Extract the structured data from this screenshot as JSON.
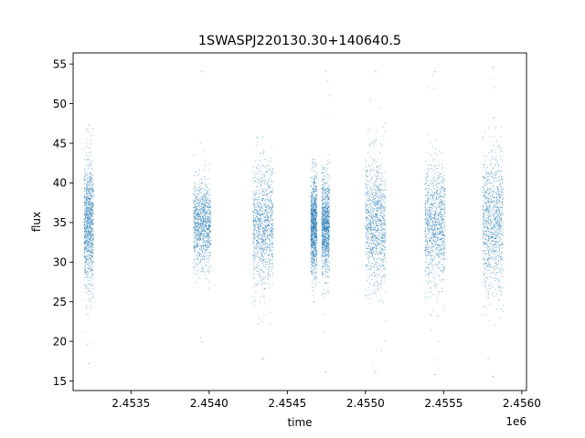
{
  "chart_data": {
    "type": "scatter",
    "title": "1SWASPJ220130.30+140640.5",
    "xlabel": "time",
    "ylabel": "flux",
    "x_offset_label": "1e6",
    "xlim": [
      2.45313,
      2.45603
    ],
    "ylim": [
      13.8,
      56.4
    ],
    "x_ticks": [
      2.4535,
      2.454,
      2.4545,
      2.455,
      2.4555,
      2.456
    ],
    "x_tick_labels": [
      "2.4535",
      "2.4540",
      "2.4545",
      "2.4550",
      "2.4555",
      "2.4560"
    ],
    "y_ticks": [
      15,
      20,
      25,
      30,
      35,
      40,
      45,
      50,
      55
    ],
    "y_tick_labels": [
      "15",
      "20",
      "25",
      "30",
      "35",
      "40",
      "45",
      "50",
      "55"
    ],
    "grid": false,
    "legend": "none",
    "marker_color": "#1f77b4",
    "observing_seasons": [
      {
        "x_start": 2.4532,
        "x_end": 2.45326,
        "y_mean": 35.0,
        "y_spread": 3.8,
        "y_min": 17.2,
        "y_max": 47.3
      },
      {
        "x_start": 2.4539,
        "x_end": 2.45401,
        "y_mean": 34.8,
        "y_spread": 2.6,
        "y_min": 20.0,
        "y_max": 54.0
      },
      {
        "x_start": 2.45428,
        "x_end": 2.45441,
        "y_mean": 34.5,
        "y_spread": 3.6,
        "y_min": 17.8,
        "y_max": 45.8
      },
      {
        "x_start": 2.45465,
        "x_end": 2.45469,
        "y_mean": 34.7,
        "y_spread": 3.0,
        "y_min": 25.0,
        "y_max": 43.0
      },
      {
        "x_start": 2.45472,
        "x_end": 2.45477,
        "y_mean": 34.7,
        "y_spread": 3.0,
        "y_min": 16.2,
        "y_max": 54.1
      },
      {
        "x_start": 2.455,
        "x_end": 2.45513,
        "y_mean": 35.0,
        "y_spread": 3.8,
        "y_min": 16.0,
        "y_max": 54.0
      },
      {
        "x_start": 2.45538,
        "x_end": 2.45551,
        "y_mean": 35.0,
        "y_spread": 3.6,
        "y_min": 15.8,
        "y_max": 54.0
      },
      {
        "x_start": 2.45575,
        "x_end": 2.45588,
        "y_mean": 35.0,
        "y_spread": 4.4,
        "y_min": 15.6,
        "y_max": 54.6
      }
    ]
  }
}
